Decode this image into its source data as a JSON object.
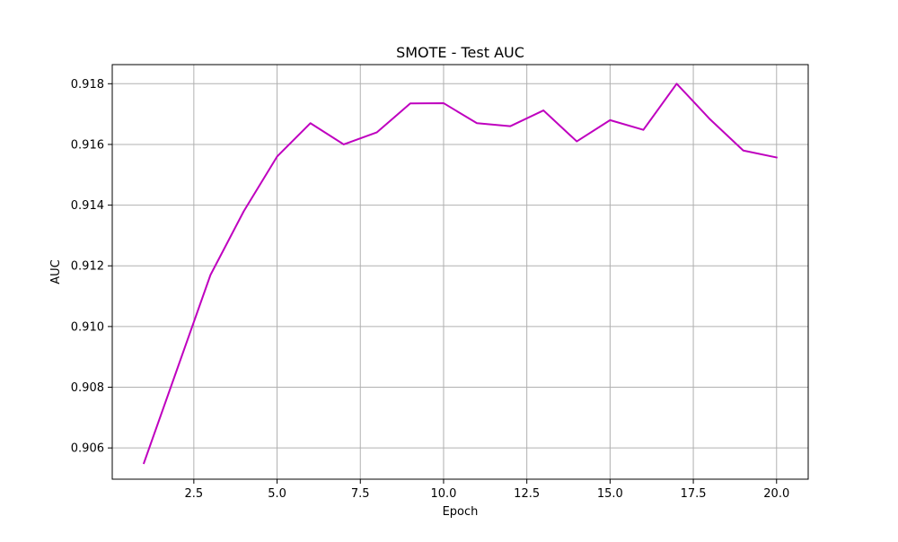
{
  "chart_data": {
    "type": "line",
    "title": "SMOTE - Test AUC",
    "xlabel": "Epoch",
    "ylabel": "AUC",
    "xlim": [
      0.05,
      20.95
    ],
    "ylim": [
      0.90497,
      0.91863
    ],
    "xticks": [
      2.5,
      5.0,
      7.5,
      10.0,
      12.5,
      15.0,
      17.5,
      20.0
    ],
    "xtick_labels": [
      "2.5",
      "5.0",
      "7.5",
      "10.0",
      "12.5",
      "15.0",
      "17.5",
      "20.0"
    ],
    "yticks": [
      0.906,
      0.908,
      0.91,
      0.912,
      0.914,
      0.916,
      0.918
    ],
    "ytick_labels": [
      "0.906",
      "0.908",
      "0.910",
      "0.912",
      "0.914",
      "0.916",
      "0.918"
    ],
    "grid": true,
    "series": [
      {
        "color": "#bf00bf",
        "x": [
          1,
          2,
          3,
          4,
          5,
          6,
          7,
          8,
          9,
          10,
          11,
          12,
          13,
          14,
          15,
          16,
          17,
          18,
          19,
          20
        ],
        "y": [
          0.9055,
          0.9086,
          0.9117,
          0.9138,
          0.9156,
          0.9167,
          0.916,
          0.9164,
          0.91735,
          0.91736,
          0.9167,
          0.9166,
          0.91712,
          0.9161,
          0.9168,
          0.91648,
          0.918,
          0.91683,
          0.9158,
          0.91557
        ]
      }
    ]
  }
}
